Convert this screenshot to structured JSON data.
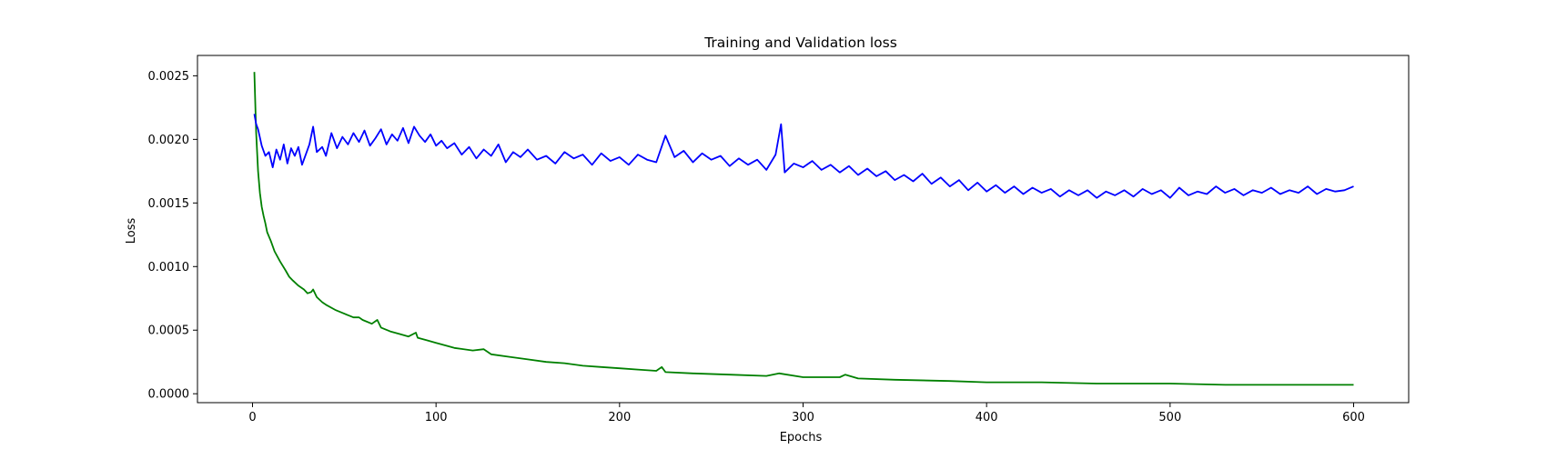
{
  "chart_data": {
    "type": "line",
    "title": "Training and Validation loss",
    "xlabel": "Epochs",
    "ylabel": "Loss",
    "xlim": [
      -30,
      630
    ],
    "ylim": [
      -7e-05,
      0.00266
    ],
    "xticks": [
      0,
      100,
      200,
      300,
      400,
      500,
      600
    ],
    "xtick_labels": [
      "0",
      "100",
      "200",
      "300",
      "400",
      "500",
      "600"
    ],
    "yticks": [
      0.0,
      0.0005,
      0.001,
      0.0015,
      0.002,
      0.0025
    ],
    "ytick_labels": [
      "0.0000",
      "0.0005",
      "0.0010",
      "0.0015",
      "0.0020",
      "0.0025"
    ],
    "grid": false,
    "legend": "none",
    "series": [
      {
        "color": "#008000",
        "x": [
          1,
          2,
          3,
          4,
          5,
          6,
          7,
          8,
          10,
          12,
          15,
          18,
          20,
          22,
          25,
          28,
          30,
          32,
          33,
          35,
          38,
          40,
          45,
          50,
          55,
          58,
          60,
          65,
          68,
          70,
          75,
          80,
          85,
          89,
          90,
          95,
          100,
          105,
          110,
          120,
          126,
          130,
          140,
          150,
          160,
          170,
          180,
          190,
          200,
          210,
          220,
          223,
          225,
          240,
          260,
          280,
          287,
          300,
          320,
          323,
          330,
          350,
          380,
          400,
          430,
          460,
          490,
          500,
          530,
          560,
          590,
          600
        ],
        "y": [
          0.00253,
          0.00205,
          0.00175,
          0.00158,
          0.00147,
          0.0014,
          0.00134,
          0.00127,
          0.0012,
          0.00112,
          0.00104,
          0.00097,
          0.00092,
          0.00089,
          0.00085,
          0.00082,
          0.00079,
          0.0008,
          0.00082,
          0.00076,
          0.00072,
          0.0007,
          0.00066,
          0.00063,
          0.0006,
          0.0006,
          0.00058,
          0.00055,
          0.00058,
          0.00052,
          0.00049,
          0.00047,
          0.00045,
          0.00048,
          0.00044,
          0.00042,
          0.0004,
          0.00038,
          0.00036,
          0.00034,
          0.00035,
          0.00031,
          0.00029,
          0.00027,
          0.00025,
          0.00024,
          0.00022,
          0.00021,
          0.0002,
          0.00019,
          0.00018,
          0.00021,
          0.00017,
          0.00016,
          0.00015,
          0.00014,
          0.00016,
          0.00013,
          0.00013,
          0.00015,
          0.00012,
          0.00011,
          0.0001,
          9e-05,
          9e-05,
          8e-05,
          8e-05,
          8e-05,
          7e-05,
          7e-05,
          7e-05,
          7e-05
        ]
      },
      {
        "color": "#0000ff",
        "x": [
          1,
          2,
          3,
          5,
          7,
          9,
          11,
          13,
          15,
          17,
          19,
          21,
          23,
          25,
          27,
          29,
          31,
          33,
          35,
          38,
          40,
          43,
          46,
          49,
          52,
          55,
          58,
          61,
          64,
          67,
          70,
          73,
          76,
          79,
          82,
          85,
          88,
          91,
          94,
          97,
          100,
          103,
          106,
          110,
          114,
          118,
          122,
          126,
          130,
          134,
          138,
          142,
          146,
          150,
          155,
          160,
          165,
          170,
          175,
          180,
          185,
          190,
          195,
          200,
          205,
          210,
          215,
          220,
          225,
          230,
          235,
          240,
          245,
          250,
          255,
          260,
          265,
          270,
          275,
          280,
          285,
          288,
          290,
          295,
          300,
          305,
          310,
          315,
          320,
          325,
          330,
          335,
          340,
          345,
          350,
          355,
          360,
          365,
          370,
          375,
          380,
          385,
          390,
          395,
          400,
          405,
          410,
          415,
          420,
          425,
          430,
          435,
          440,
          445,
          450,
          455,
          460,
          465,
          470,
          475,
          480,
          485,
          490,
          495,
          500,
          505,
          510,
          515,
          520,
          525,
          530,
          535,
          540,
          545,
          550,
          555,
          560,
          565,
          570,
          575,
          580,
          585,
          590,
          595,
          600
        ],
        "y": [
          0.0022,
          0.00212,
          0.00208,
          0.00195,
          0.00187,
          0.0019,
          0.00178,
          0.00192,
          0.00184,
          0.00196,
          0.00181,
          0.00193,
          0.00187,
          0.00194,
          0.0018,
          0.00188,
          0.00196,
          0.0021,
          0.0019,
          0.00194,
          0.00187,
          0.00205,
          0.00193,
          0.00202,
          0.00196,
          0.00205,
          0.00198,
          0.00207,
          0.00195,
          0.00201,
          0.00208,
          0.00196,
          0.00204,
          0.00199,
          0.00209,
          0.00197,
          0.0021,
          0.00203,
          0.00198,
          0.00204,
          0.00195,
          0.00199,
          0.00193,
          0.00197,
          0.00188,
          0.00194,
          0.00185,
          0.00192,
          0.00187,
          0.00196,
          0.00182,
          0.0019,
          0.00186,
          0.00192,
          0.00184,
          0.00187,
          0.00181,
          0.0019,
          0.00185,
          0.00188,
          0.0018,
          0.00189,
          0.00183,
          0.00186,
          0.0018,
          0.00188,
          0.00184,
          0.00182,
          0.00203,
          0.00186,
          0.00191,
          0.00182,
          0.00189,
          0.00184,
          0.00187,
          0.00179,
          0.00185,
          0.0018,
          0.00184,
          0.00176,
          0.00188,
          0.00212,
          0.00174,
          0.00181,
          0.00178,
          0.00183,
          0.00176,
          0.0018,
          0.00174,
          0.00179,
          0.00172,
          0.00177,
          0.00171,
          0.00175,
          0.00168,
          0.00172,
          0.00167,
          0.00173,
          0.00165,
          0.0017,
          0.00163,
          0.00168,
          0.0016,
          0.00166,
          0.00159,
          0.00164,
          0.00158,
          0.00163,
          0.00157,
          0.00162,
          0.00158,
          0.00161,
          0.00155,
          0.0016,
          0.00156,
          0.0016,
          0.00154,
          0.00159,
          0.00156,
          0.0016,
          0.00155,
          0.00161,
          0.00157,
          0.0016,
          0.00154,
          0.00162,
          0.00156,
          0.00159,
          0.00157,
          0.00163,
          0.00158,
          0.00161,
          0.00156,
          0.0016,
          0.00158,
          0.00162,
          0.00157,
          0.0016,
          0.00158,
          0.00163,
          0.00157,
          0.00161,
          0.00159,
          0.0016,
          0.00163
        ]
      }
    ]
  }
}
